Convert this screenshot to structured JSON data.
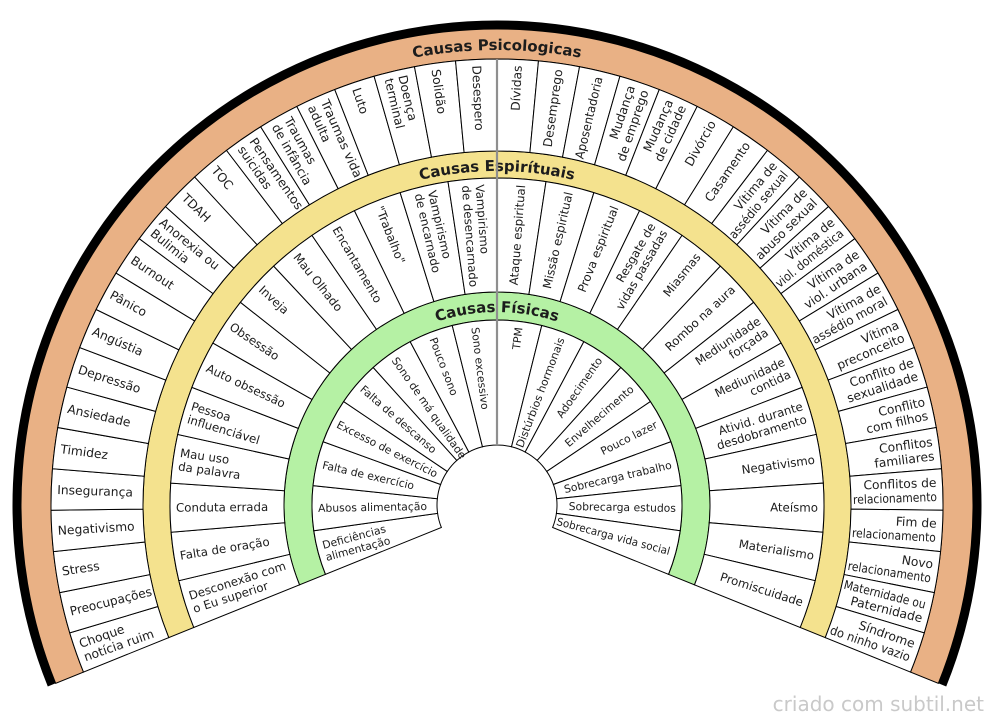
{
  "footer": {
    "credit": "criado com subtil.net"
  },
  "chart_data": {
    "type": "radial-fan",
    "description": "Pendulum dowsing fan chart with three concentric category rings",
    "rings": [
      {
        "id": "fisicas",
        "header": "Causas Físicas",
        "band_color": "#b5f1a4",
        "items": [
          "Deficiências\nalimentação",
          "Abusos alimentação",
          "Falta de exercício",
          "Excesso de exercício",
          "Falta de descanso",
          "Sono de má qualidade",
          "Pouco sono",
          "Sono excessivo",
          "TPM",
          "Distúrbios hormonais",
          "Adoecimento",
          "Envelhecimento",
          "Pouco lazer",
          "Sobrecarga trabalho",
          "Sobrecarga estudos",
          "Sobrecarga vida social"
        ]
      },
      {
        "id": "espirituais",
        "header": "Causas Espirítuais",
        "band_color": "#f4e28e",
        "items": [
          "Desconexão com\no Eu superior",
          "Falta de oração",
          "Conduta errada",
          "Mau uso\nda palavra",
          "Pessoa\ninfluenciável",
          "Auto obsessão",
          "Obsessão",
          "Inveja",
          "Mau Olhado",
          "Encantamento",
          "\"Trabalho\"",
          "Vampirismo\nde encarnado",
          "Vampirismo\nde desencarnado",
          "Ataque espiritual",
          "Missão espiritual",
          "Prova espiritual",
          "Resgate de\nvidas passadas",
          "Miasmas",
          "Rombo na aura",
          "Mediunidade\nforçada",
          "Mediunidade\ncontida",
          "Ativid. durante\ndesdobramento",
          "Negativismo",
          "Ateísmo",
          "Materialismo",
          "Promiscuidade"
        ]
      },
      {
        "id": "psicologicas",
        "header": "Causas Psicologicas",
        "band_color": "#e9b185",
        "items": [
          "Choque\nnotícia ruim",
          "Preocupações",
          "Stress",
          "Negativismo",
          "Insegurança",
          "Timidez",
          "Ansiedade",
          "Depressão",
          "Angústia",
          "Pânico",
          "Burnout",
          "Anorexia ou\nBulimia",
          "TDAH",
          "TOC",
          "Pensamentos\nsuicidas",
          "Traumas\nde infância",
          "Traumas vida\nadulta",
          "Luto",
          "Doença\nterminal",
          "Solidão",
          "Desespero",
          "Dívidas",
          "Desemprego",
          "Aposentadoria",
          "Mudança\nde emprego",
          "Mudança\nde cidade",
          "Divórcio",
          "Casamento",
          "Vítima de\nassédio sexual",
          "Vítima de\nabuso sexual",
          "Vítima de\nviol. doméstica",
          "Vítima de\nviol. urbana",
          "Vítima de\nassédio moral",
          "Vítima\npreconceito",
          "Conflito de\nsexualidade",
          "Conflito\ncom filhos",
          "Conflitos\nfamiliares",
          "Conflitos de\nrelacionamento",
          "Fim de\nrelacionamento",
          "Novo\nrelacionamento",
          "Maternidade ou\nPaternidade",
          "Síndrome\ndo ninho vazio"
        ]
      }
    ],
    "colors": {
      "segment_fill": "#ffffff",
      "segment_stroke": "#000000",
      "outer_arc": "#000000",
      "center_line": "#8f8f8f",
      "credit_text": "#c9c9c9"
    }
  }
}
